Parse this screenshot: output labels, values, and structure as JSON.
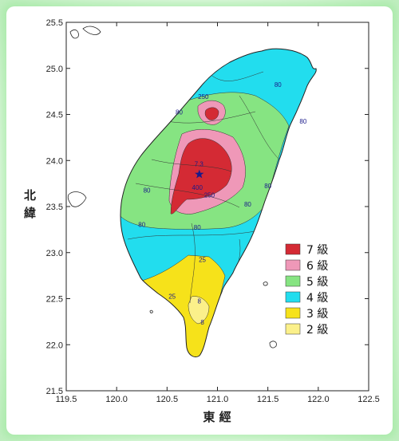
{
  "map": {
    "axes": {
      "x_label": "東 經",
      "y_label_lines": [
        "北",
        "緯"
      ],
      "x_range": [
        119.5,
        122.5
      ],
      "y_range": [
        21.5,
        25.5
      ],
      "x_ticks": [
        "119.5",
        "120.0",
        "120.5",
        "121.0",
        "121.5",
        "122.0",
        "122.5"
      ],
      "y_ticks": [
        "25.5",
        "25.0",
        "24.5",
        "24.0",
        "23.5",
        "23.0",
        "22.5",
        "22.0",
        "21.5"
      ]
    },
    "legend": {
      "position": "right-middle",
      "items": [
        {
          "label": "7 級",
          "color": "#d42a34"
        },
        {
          "label": "6 級",
          "color": "#ef98b8"
        },
        {
          "label": "5 級",
          "color": "#86e482"
        },
        {
          "label": "4 級",
          "color": "#22ddee"
        },
        {
          "label": "3 級",
          "color": "#f6e21a"
        },
        {
          "label": "2 級",
          "color": "#fbf08a"
        }
      ]
    },
    "epicenter": {
      "label": "7.3",
      "lon": 120.82,
      "lat": 23.85
    },
    "contour_labels": [
      {
        "text": "80",
        "lon": 121.6,
        "lat": 24.8
      },
      {
        "text": "80",
        "lon": 121.85,
        "lat": 24.4
      },
      {
        "text": "250",
        "lon": 120.86,
        "lat": 24.67
      },
      {
        "text": "80",
        "lon": 120.62,
        "lat": 24.5
      },
      {
        "text": "80",
        "lon": 120.3,
        "lat": 23.65
      },
      {
        "text": "400",
        "lon": 120.8,
        "lat": 23.68
      },
      {
        "text": "250",
        "lon": 120.92,
        "lat": 23.6
      },
      {
        "text": "80",
        "lon": 121.3,
        "lat": 23.5
      },
      {
        "text": "80",
        "lon": 121.5,
        "lat": 23.7
      },
      {
        "text": "80",
        "lon": 120.8,
        "lat": 23.25
      },
      {
        "text": "80",
        "lon": 120.25,
        "lat": 23.28
      },
      {
        "text": "25",
        "lon": 120.55,
        "lat": 22.5
      },
      {
        "text": "25",
        "lon": 120.85,
        "lat": 22.9
      },
      {
        "text": "8",
        "lon": 120.82,
        "lat": 22.45
      },
      {
        "text": "8",
        "lon": 120.85,
        "lat": 22.22
      }
    ]
  }
}
